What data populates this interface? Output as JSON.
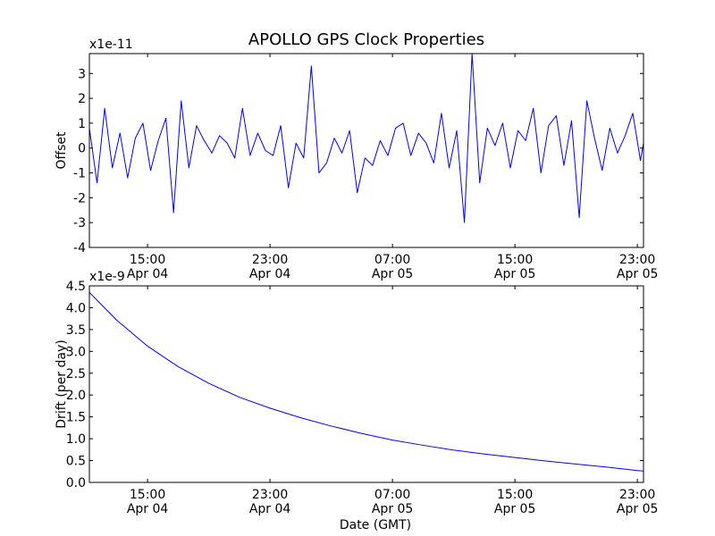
{
  "figure_title": "APOLLO GPS Clock Properties",
  "chart_data": [
    {
      "type": "line",
      "title": "APOLLO GPS Clock Properties",
      "ylabel": "Offset",
      "xlabel": "",
      "y_multiplier": "x1e-11",
      "ylim": [
        -4,
        3.8
      ],
      "yticks": [
        -4,
        -3,
        -2,
        -1,
        0,
        1,
        2,
        3
      ],
      "ytick_labels": [
        "-4",
        "-3",
        "-2",
        "-1",
        "0",
        "1",
        "2",
        "3"
      ],
      "xlim_hours": [
        11.2,
        47.4
      ],
      "xticks": [
        {
          "hour": 15,
          "time": "15:00",
          "date": "Apr 04"
        },
        {
          "hour": 23,
          "time": "23:00",
          "date": "Apr 04"
        },
        {
          "hour": 31,
          "time": "07:00",
          "date": "Apr 05"
        },
        {
          "hour": 39,
          "time": "15:00",
          "date": "Apr 05"
        },
        {
          "hour": 47,
          "time": "23:00",
          "date": "Apr 05"
        }
      ],
      "series": [
        {
          "name": "offset",
          "color": "#0000ff",
          "x_hours": [
            11.2,
            11.7,
            12.2,
            12.7,
            13.2,
            13.7,
            14.2,
            14.7,
            15.2,
            15.7,
            16.2,
            16.7,
            17.2,
            17.7,
            18.2,
            18.7,
            19.2,
            19.7,
            20.2,
            20.7,
            21.2,
            21.7,
            22.2,
            22.7,
            23.2,
            23.7,
            24.2,
            24.7,
            25.2,
            25.7,
            26.2,
            26.7,
            27.2,
            27.7,
            28.2,
            28.7,
            29.2,
            29.7,
            30.2,
            30.7,
            31.2,
            31.7,
            32.2,
            32.7,
            33.2,
            33.7,
            34.2,
            34.7,
            35.2,
            35.7,
            36.2,
            36.7,
            37.2,
            37.7,
            38.2,
            38.7,
            39.2,
            39.7,
            40.2,
            40.7,
            41.2,
            41.7,
            42.2,
            42.7,
            43.2,
            43.7,
            44.2,
            44.7,
            45.2,
            45.7,
            46.2,
            46.7,
            47.2,
            47.4
          ],
          "values": [
            0.8,
            -1.4,
            1.6,
            -0.8,
            0.6,
            -1.2,
            0.4,
            1.0,
            -0.9,
            0.3,
            1.2,
            -2.6,
            1.9,
            -0.8,
            0.9,
            0.3,
            -0.2,
            0.5,
            0.2,
            -0.4,
            1.6,
            -0.3,
            0.6,
            -0.1,
            -0.3,
            0.9,
            -1.6,
            0.2,
            -0.4,
            3.3,
            -1.0,
            -0.6,
            0.4,
            -0.2,
            0.7,
            -1.8,
            -0.4,
            -0.7,
            0.3,
            -0.3,
            0.8,
            1.0,
            -0.3,
            0.6,
            0.2,
            -0.6,
            1.4,
            -0.8,
            0.7,
            -3.0,
            3.8,
            -1.4,
            0.8,
            0.1,
            1.0,
            -0.8,
            0.7,
            0.3,
            1.6,
            -1.0,
            0.9,
            1.3,
            -0.7,
            1.1,
            -2.8,
            1.9,
            0.4,
            -0.9,
            0.8,
            -0.2,
            0.5,
            1.4,
            -0.5,
            0.2
          ]
        }
      ]
    },
    {
      "type": "line",
      "title": "",
      "ylabel": "Drift (per day)",
      "xlabel": "Date (GMT)",
      "y_multiplier": "x1e-9",
      "ylim": [
        0.0,
        4.5
      ],
      "yticks": [
        0.0,
        0.5,
        1.0,
        1.5,
        2.0,
        2.5,
        3.0,
        3.5,
        4.0,
        4.5
      ],
      "ytick_labels": [
        "0.0",
        "0.5",
        "1.0",
        "1.5",
        "2.0",
        "2.5",
        "3.0",
        "3.5",
        "4.0",
        "4.5"
      ],
      "xlim_hours": [
        11.2,
        47.4
      ],
      "xticks": [
        {
          "hour": 15,
          "time": "15:00",
          "date": "Apr 04"
        },
        {
          "hour": 23,
          "time": "23:00",
          "date": "Apr 04"
        },
        {
          "hour": 31,
          "time": "07:00",
          "date": "Apr 05"
        },
        {
          "hour": 39,
          "time": "15:00",
          "date": "Apr 05"
        },
        {
          "hour": 47,
          "time": "23:00",
          "date": "Apr 05"
        }
      ],
      "series": [
        {
          "name": "drift",
          "color": "#0000ff",
          "x_hours": [
            11.2,
            13.0,
            15.0,
            17.0,
            19.0,
            21.0,
            23.0,
            25.0,
            27.0,
            29.0,
            31.0,
            33.0,
            35.0,
            37.0,
            39.0,
            41.0,
            43.0,
            45.0,
            47.0,
            47.4
          ],
          "values": [
            4.35,
            3.71,
            3.12,
            2.65,
            2.27,
            1.95,
            1.7,
            1.48,
            1.29,
            1.12,
            0.97,
            0.85,
            0.74,
            0.65,
            0.57,
            0.49,
            0.42,
            0.35,
            0.27,
            0.26
          ]
        }
      ]
    }
  ]
}
